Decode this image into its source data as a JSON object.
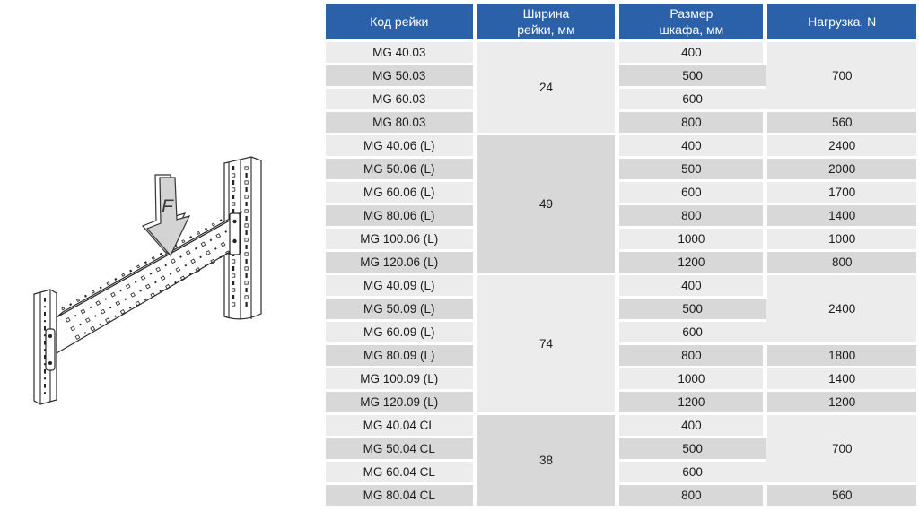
{
  "diagram": {
    "force_label": "F"
  },
  "table": {
    "colors": {
      "header_bg": "#2b61a8",
      "header_text": "#ffffff",
      "row_light": "#ececec",
      "row_dark": "#d8d8d8"
    },
    "headers": [
      {
        "id": "rail-code",
        "label": "Код рейки"
      },
      {
        "id": "rail-width",
        "label": "Ширина\nрейки, мм"
      },
      {
        "id": "cabinet-size",
        "label": "Размер\nшкафа, мм"
      },
      {
        "id": "load",
        "label": "Нагрузка, N"
      }
    ],
    "groups": [
      {
        "rail_width_mm": "24",
        "rows": [
          {
            "code": "MG 40.03",
            "size": "400"
          },
          {
            "code": "MG 50.03",
            "size": "500"
          },
          {
            "code": "MG 60.03",
            "size": "600"
          },
          {
            "code": "MG 80.03",
            "size": "800"
          }
        ],
        "loads": [
          {
            "value": "700",
            "span": 3
          },
          {
            "value": "560",
            "span": 1
          }
        ]
      },
      {
        "rail_width_mm": "49",
        "rows": [
          {
            "code": "MG 40.06 (L)",
            "size": "400"
          },
          {
            "code": "MG 50.06 (L)",
            "size": "500"
          },
          {
            "code": "MG 60.06 (L)",
            "size": "600"
          },
          {
            "code": "MG 80.06 (L)",
            "size": "800"
          },
          {
            "code": "MG 100.06 (L)",
            "size": "1000"
          },
          {
            "code": "MG 120.06 (L)",
            "size": "1200"
          }
        ],
        "loads": [
          {
            "value": "2400",
            "span": 1
          },
          {
            "value": "2000",
            "span": 1
          },
          {
            "value": "1700",
            "span": 1
          },
          {
            "value": "1400",
            "span": 1
          },
          {
            "value": "1000",
            "span": 1
          },
          {
            "value": "800",
            "span": 1
          }
        ]
      },
      {
        "rail_width_mm": "74",
        "rows": [
          {
            "code": "MG 40.09 (L)",
            "size": "400"
          },
          {
            "code": "MG 50.09 (L)",
            "size": "500"
          },
          {
            "code": "MG 60.09 (L)",
            "size": "600"
          },
          {
            "code": "MG 80.09 (L)",
            "size": "800"
          },
          {
            "code": "MG 100.09 (L)",
            "size": "1000"
          },
          {
            "code": "MG 120.09 (L)",
            "size": "1200"
          }
        ],
        "loads": [
          {
            "value": "2400",
            "span": 3
          },
          {
            "value": "1800",
            "span": 1
          },
          {
            "value": "1400",
            "span": 1
          },
          {
            "value": "1200",
            "span": 1
          }
        ]
      },
      {
        "rail_width_mm": "38",
        "rows": [
          {
            "code": "MG 40.04 CL",
            "size": "400"
          },
          {
            "code": "MG 50.04 CL",
            "size": "500"
          },
          {
            "code": "MG 60.04 CL",
            "size": "600"
          },
          {
            "code": "MG 80.04 CL",
            "size": "800"
          }
        ],
        "loads": [
          {
            "value": "700",
            "span": 3
          },
          {
            "value": "560",
            "span": 1
          }
        ]
      }
    ]
  }
}
